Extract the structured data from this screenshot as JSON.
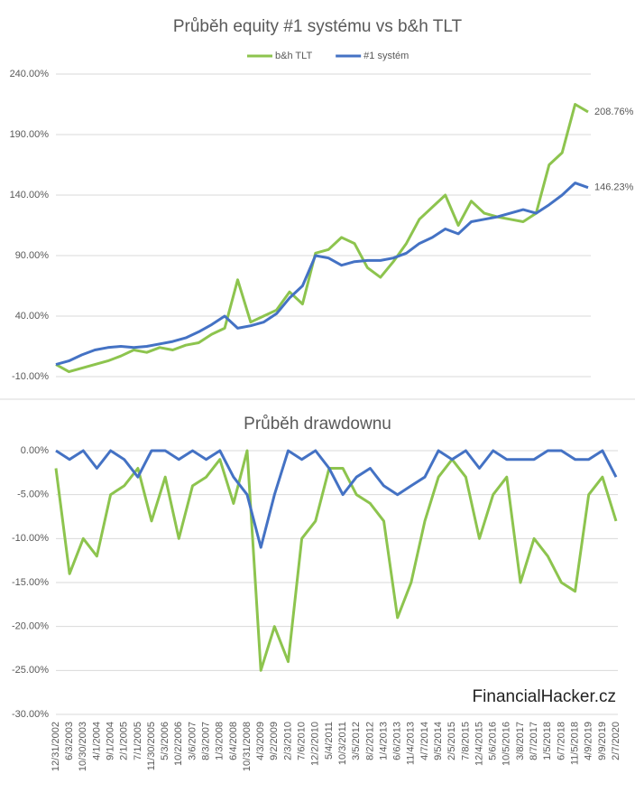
{
  "chart_data": [
    {
      "type": "line",
      "title": "Průběh equity #1 systému vs b&h TLT",
      "series": [
        {
          "name": "b&h TLT",
          "color": "#8dc44e",
          "values": [
            0,
            -6,
            -3,
            0,
            3,
            7,
            12,
            10,
            14,
            12,
            16,
            18,
            25,
            30,
            70,
            35,
            40,
            45,
            60,
            50,
            92,
            95,
            105,
            100,
            80,
            72,
            85,
            100,
            120,
            130,
            140,
            115,
            135,
            125,
            122,
            120,
            118,
            125,
            165,
            175,
            215,
            208.76
          ],
          "value_labels": [
            null,
            null,
            null,
            null,
            null,
            null,
            null,
            null,
            null,
            null,
            null,
            null,
            null,
            null,
            null,
            null,
            null,
            null,
            null,
            null,
            null,
            null,
            null,
            null,
            null,
            null,
            null,
            null,
            null,
            null,
            null,
            null,
            null,
            null,
            null,
            null,
            null,
            null,
            null,
            null,
            null,
            "208.76%"
          ]
        },
        {
          "name": "#1 systém",
          "color": "#4472c4",
          "values": [
            0,
            3,
            8,
            12,
            14,
            15,
            14,
            15,
            17,
            19,
            22,
            27,
            33,
            40,
            30,
            32,
            35,
            42,
            55,
            65,
            90,
            88,
            82,
            85,
            86,
            86,
            88,
            92,
            100,
            105,
            112,
            108,
            118,
            120,
            122,
            125,
            128,
            125,
            132,
            140,
            150,
            146.23
          ],
          "value_labels": [
            null,
            null,
            null,
            null,
            null,
            null,
            null,
            null,
            null,
            null,
            null,
            null,
            null,
            null,
            null,
            null,
            null,
            null,
            null,
            null,
            null,
            null,
            null,
            null,
            null,
            null,
            null,
            null,
            null,
            null,
            null,
            null,
            null,
            null,
            null,
            null,
            null,
            null,
            null,
            null,
            null,
            "146.23%"
          ]
        }
      ],
      "ylim": [
        -10,
        240
      ],
      "yticks": [
        {
          "value": -10,
          "label": "-10.00%"
        },
        {
          "value": 40,
          "label": "40.00%"
        },
        {
          "value": 90,
          "label": "90.00%"
        },
        {
          "value": 140,
          "label": "140.00%"
        },
        {
          "value": 190,
          "label": "190.00%"
        },
        {
          "value": 240,
          "label": "240.00%"
        }
      ],
      "grid": true,
      "legend": "top"
    },
    {
      "type": "line",
      "title": "Průběh drawdownu",
      "categories": [
        "12/31/2002",
        "6/3/2003",
        "10/30/2003",
        "4/1/2004",
        "9/1/2004",
        "2/1/2005",
        "7/1/2005",
        "11/30/2005",
        "5/3/2006",
        "10/2/2006",
        "3/6/2007",
        "8/3/2007",
        "1/3/2008",
        "6/4/2008",
        "10/31/2008",
        "4/3/2009",
        "9/2/2009",
        "2/3/2010",
        "7/6/2010",
        "12/2/2010",
        "5/4/2011",
        "10/3/2011",
        "3/5/2012",
        "8/2/2012",
        "1/4/2013",
        "6/6/2013",
        "11/4/2013",
        "4/7/2014",
        "9/5/2014",
        "2/5/2015",
        "7/8/2015",
        "12/4/2015",
        "5/6/2016",
        "10/5/2016",
        "3/8/2017",
        "8/7/2017",
        "1/5/2018",
        "6/7/2018",
        "11/5/2018",
        "4/9/2019",
        "9/9/2019",
        "2/7/2020"
      ],
      "series": [
        {
          "color": "#8dc44e",
          "values": [
            -2,
            -14,
            -10,
            -12,
            -5,
            -4,
            -2,
            -8,
            -3,
            -10,
            -4,
            -3,
            -1,
            -6,
            0,
            -25,
            -20,
            -24,
            -10,
            -8,
            -2,
            -2,
            -5,
            -6,
            -8,
            -19,
            -15,
            -8,
            -3,
            -1,
            -3,
            -10,
            -5,
            -3,
            -15,
            -10,
            -12,
            -15,
            -16,
            -5,
            -3,
            -8
          ]
        },
        {
          "color": "#4472c4",
          "values": [
            0,
            -1,
            0,
            -2,
            0,
            -1,
            -3,
            0,
            0,
            -1,
            0,
            -1,
            0,
            -3,
            -5,
            -11,
            -5,
            0,
            -1,
            0,
            -2,
            -5,
            -3,
            -2,
            -4,
            -5,
            -4,
            -3,
            0,
            -1,
            0,
            -2,
            0,
            -1,
            -1,
            -1,
            0,
            0,
            -1,
            -1,
            0,
            -3
          ]
        }
      ],
      "ylim": [
        -30,
        0
      ],
      "yticks": [
        {
          "value": 0,
          "label": "0.00%"
        },
        {
          "value": -5,
          "label": "-5.00%"
        },
        {
          "value": -10,
          "label": "-10.00%"
        },
        {
          "value": -15,
          "label": "-15.00%"
        },
        {
          "value": -20,
          "label": "-20.00%"
        },
        {
          "value": -25,
          "label": "-25.00%"
        },
        {
          "value": -30,
          "label": "-30.00%"
        }
      ],
      "grid": true,
      "watermark": "FinancialHacker.cz"
    }
  ]
}
